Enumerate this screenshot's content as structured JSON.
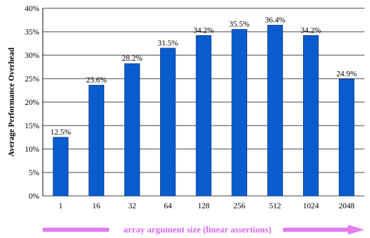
{
  "chart_data": {
    "type": "bar",
    "title": "",
    "xlabel": "array argument size (linear assertions)",
    "ylabel": "Average Performance Overhead",
    "categories": [
      "1",
      "16",
      "32",
      "64",
      "128",
      "256",
      "512",
      "1024",
      "2048"
    ],
    "values": [
      12.5,
      23.6,
      28.2,
      31.5,
      34.2,
      35.5,
      36.4,
      34.2,
      24.9
    ],
    "data_labels": [
      "12.5%",
      "23.6%",
      "28.2%",
      "31.5%",
      "34.2%",
      "35.5%",
      "36.4%",
      "34.2%",
      "24.9%"
    ],
    "ylim": [
      0,
      40
    ],
    "yticks": [
      0,
      5,
      10,
      15,
      20,
      25,
      30,
      35,
      40
    ],
    "ytick_labels": [
      "0%",
      "5%",
      "10%",
      "15%",
      "20%",
      "25%",
      "30%",
      "35%",
      "40%"
    ],
    "grid": true,
    "legend": "none",
    "colors": {
      "bar_fill": "#0a5ccc",
      "bar_stroke": "#0a3a8c",
      "grid": "#000000",
      "xlabel_arrow": "#e27cf0",
      "xlabel_text": "#d866ee"
    }
  }
}
